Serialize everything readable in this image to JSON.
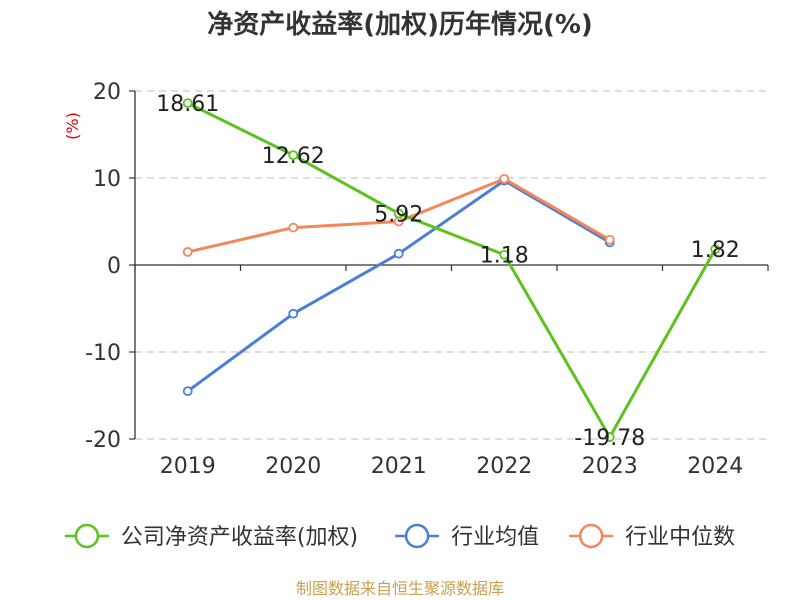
{
  "chart_data": {
    "type": "line",
    "title": "净资产收益率(加权)历年情况(%)",
    "ylabel": "(%)",
    "xlabel": "",
    "categories": [
      "2019",
      "2020",
      "2021",
      "2022",
      "2023",
      "2024"
    ],
    "ylim": [
      -20,
      20
    ],
    "yticks": [
      20,
      10,
      0,
      -10,
      -20
    ],
    "grid": true,
    "legend_position": "bottom",
    "series": [
      {
        "name": "公司净资产收益率(加权)",
        "color": "#5cc21e",
        "values": [
          18.61,
          12.62,
          5.92,
          1.18,
          -19.78,
          1.82
        ],
        "labels": [
          "18.61",
          "12.62",
          "5.92",
          "1.18",
          "-19.78",
          "1.82"
        ]
      },
      {
        "name": "行业均值",
        "color": "#4a7fd8",
        "values": [
          -14.5,
          -5.6,
          1.3,
          9.7,
          2.6,
          null
        ]
      },
      {
        "name": "行业中位数",
        "color": "#f4875a",
        "values": [
          1.5,
          4.3,
          5.0,
          9.9,
          2.9,
          null
        ]
      }
    ]
  },
  "source": "制图数据来自恒生聚源数据库"
}
